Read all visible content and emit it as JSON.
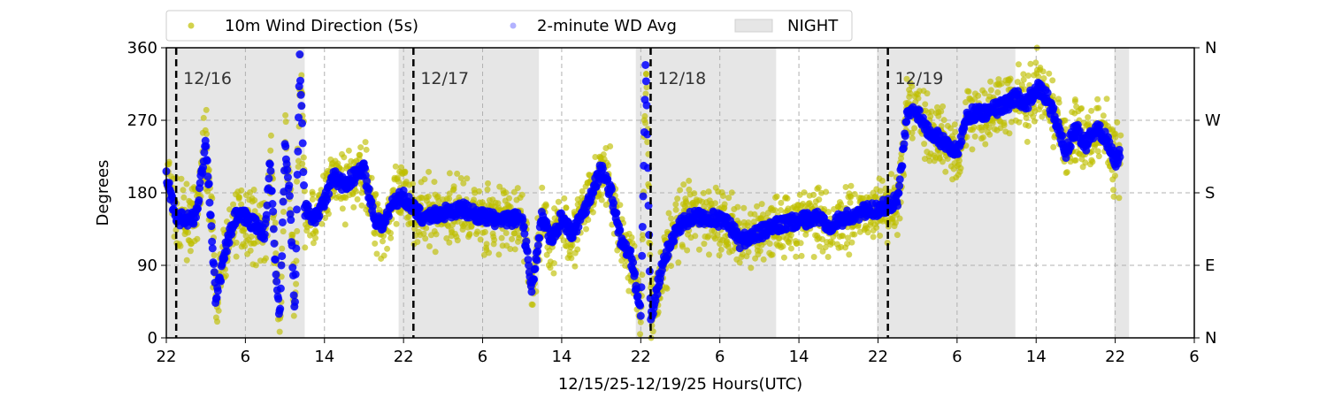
{
  "chart_data": {
    "type": "scatter",
    "xlabel": "12/15/25-12/19/25  Hours(UTC)",
    "ylabel": "Degrees",
    "xlim_hours_from_start": [
      0,
      104
    ],
    "x_tick_labels": [
      "22",
      "6",
      "14",
      "22",
      "6",
      "14",
      "22",
      "6",
      "14",
      "22",
      "6",
      "14",
      "22",
      "6"
    ],
    "x_tick_step_hours": 8,
    "ylim": [
      0,
      360
    ],
    "y_ticks": [
      0,
      90,
      180,
      270,
      360
    ],
    "y_tick_labels": [
      "0",
      "90",
      "180",
      "270",
      "360"
    ],
    "y2_tick_labels": [
      "N",
      "E",
      "S",
      "W",
      "N"
    ],
    "grid": true,
    "legend": {
      "placement": "top",
      "entries": [
        {
          "label": "10m Wind Direction (5s)",
          "color": "#bfbf00"
        },
        {
          "label": "2-minute WD Avg",
          "color": "#0000ff"
        },
        {
          "label": "NIGHT",
          "color": "#e6e6e6"
        }
      ]
    },
    "day_markers": [
      {
        "label": "12/16",
        "hour": 1
      },
      {
        "label": "12/17",
        "hour": 25
      },
      {
        "label": "12/18",
        "hour": 49
      },
      {
        "label": "12/19",
        "hour": 73
      }
    ],
    "night_periods_hours": [
      [
        0,
        14
      ],
      [
        23.5,
        37.7
      ],
      [
        47.5,
        61.7
      ],
      [
        71.9,
        85.9
      ],
      [
        95.9,
        97.4
      ]
    ],
    "series": [
      {
        "name": "2-minute WD Avg",
        "color": "#0000ff",
        "x_hours": [
          0,
          1,
          2,
          3,
          4,
          4.5,
          5,
          6,
          7,
          8,
          9,
          10,
          10.5,
          11,
          11.5,
          12,
          12.5,
          13,
          13.5,
          14,
          15,
          16,
          17,
          18,
          19,
          20,
          21,
          22,
          23,
          24,
          25,
          26,
          28,
          30,
          32,
          34,
          36,
          37,
          38,
          39,
          40,
          41,
          42,
          43,
          44,
          45,
          46,
          47,
          48,
          48.5,
          49,
          50,
          51,
          52,
          53,
          55,
          57,
          58,
          60,
          62,
          64,
          66,
          67,
          68,
          70,
          72,
          73,
          74,
          75,
          76,
          77,
          78,
          79,
          80,
          81,
          82,
          83,
          84,
          85,
          86,
          87,
          88,
          89,
          90,
          91,
          92,
          93,
          94,
          95,
          96,
          96.5
        ],
        "values": [
          200,
          150,
          145,
          150,
          245,
          150,
          45,
          110,
          150,
          150,
          140,
          130,
          220,
          100,
          20,
          240,
          170,
          30,
          350,
          160,
          150,
          170,
          200,
          190,
          200,
          210,
          150,
          140,
          170,
          175,
          160,
          150,
          155,
          160,
          150,
          145,
          150,
          60,
          150,
          120,
          150,
          130,
          150,
          180,
          210,
          180,
          120,
          100,
          30,
          350,
          20,
          80,
          120,
          140,
          150,
          150,
          140,
          120,
          130,
          140,
          145,
          150,
          140,
          145,
          155,
          160,
          165,
          170,
          280,
          280,
          260,
          250,
          240,
          230,
          275,
          280,
          280,
          285,
          290,
          300,
          290,
          310,
          300,
          270,
          230,
          260,
          240,
          260,
          250,
          220,
          230
        ]
      },
      {
        "name": "10m Wind Direction (5s)",
        "color": "#bfbf00",
        "x_hours": [
          0,
          1,
          2,
          3,
          4,
          4.5,
          5,
          6,
          7,
          8,
          9,
          10,
          10.5,
          11,
          11.5,
          12,
          12.5,
          13,
          13.5,
          14,
          15,
          16,
          17,
          18,
          19,
          20,
          21,
          22,
          23,
          24,
          25,
          26,
          28,
          30,
          32,
          34,
          36,
          37,
          38,
          39,
          40,
          41,
          42,
          43,
          44,
          45,
          46,
          47,
          48,
          48.5,
          49,
          50,
          51,
          52,
          53,
          55,
          57,
          58,
          60,
          62,
          64,
          66,
          67,
          68,
          70,
          72,
          73,
          74,
          75,
          76,
          77,
          78,
          79,
          80,
          81,
          82,
          83,
          84,
          85,
          86,
          87,
          88,
          89,
          90,
          91,
          92,
          93,
          94,
          95,
          96,
          96.5
        ],
        "values": [
          200,
          150,
          145,
          150,
          245,
          150,
          45,
          110,
          150,
          150,
          140,
          130,
          220,
          100,
          20,
          240,
          170,
          30,
          350,
          160,
          150,
          170,
          200,
          190,
          200,
          210,
          150,
          140,
          170,
          175,
          160,
          150,
          155,
          160,
          150,
          145,
          150,
          60,
          150,
          120,
          150,
          130,
          150,
          180,
          210,
          180,
          120,
          100,
          30,
          350,
          20,
          80,
          120,
          140,
          150,
          150,
          140,
          120,
          130,
          140,
          145,
          150,
          140,
          145,
          155,
          160,
          165,
          170,
          280,
          280,
          260,
          250,
          240,
          230,
          275,
          280,
          280,
          285,
          290,
          300,
          290,
          310,
          300,
          270,
          230,
          260,
          240,
          260,
          250,
          220,
          230
        ]
      }
    ]
  }
}
